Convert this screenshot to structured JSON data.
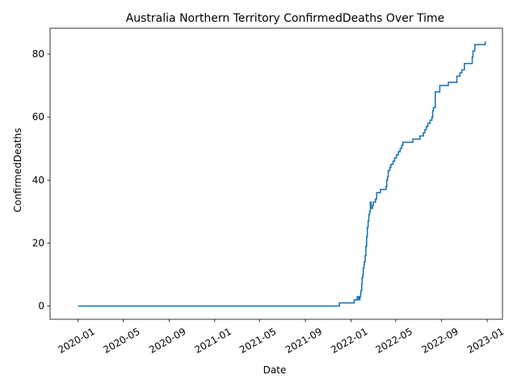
{
  "chart_data": {
    "type": "line",
    "title": "Australia Northern Territory ConfirmedDeaths Over Time",
    "xlabel": "Date",
    "ylabel": "ConfirmedDeaths",
    "x_ticks": [
      "2020-01",
      "2020-05",
      "2020-09",
      "2021-01",
      "2021-05",
      "2021-09",
      "2022-01",
      "2022-05",
      "2022-09",
      "2023-01"
    ],
    "y_ticks": [
      0,
      20,
      40,
      60,
      80
    ],
    "xlim": [
      "2019-10-18",
      "2023-02-11"
    ],
    "ylim": [
      -4.2,
      88.2
    ],
    "grid": false,
    "legend": "none",
    "color": "#1f77b4",
    "series": [
      {
        "x": [
          "2020-01-01",
          "2021-11-30",
          "2021-12-01",
          "2022-01-09",
          "2022-01-10",
          "2022-01-17",
          "2022-01-18",
          "2022-01-20",
          "2022-01-21",
          "2022-01-24",
          "2022-01-25",
          "2022-01-27",
          "2022-01-28",
          "2022-01-30",
          "2022-01-31",
          "2022-02-02",
          "2022-02-03",
          "2022-02-05",
          "2022-02-06",
          "2022-02-08",
          "2022-02-10",
          "2022-02-12",
          "2022-02-14",
          "2022-02-16",
          "2022-02-18",
          "2022-02-20",
          "2022-02-22",
          "2022-02-24",
          "2022-02-26",
          "2022-02-28",
          "2022-03-01",
          "2022-03-02",
          "2022-03-04",
          "2022-03-08",
          "2022-03-11",
          "2022-03-14",
          "2022-03-18",
          "2022-03-21",
          "2022-04-05",
          "2022-04-07",
          "2022-04-09",
          "2022-04-11",
          "2022-04-13",
          "2022-04-15",
          "2022-04-18",
          "2022-04-24",
          "2022-04-28",
          "2022-05-03",
          "2022-05-08",
          "2022-05-13",
          "2022-05-17",
          "2022-05-20",
          "2022-05-24",
          "2022-06-01",
          "2022-06-16",
          "2022-06-30",
          "2022-07-05",
          "2022-07-10",
          "2022-07-14",
          "2022-07-18",
          "2022-07-22",
          "2022-07-26",
          "2022-08-01",
          "2022-08-06",
          "2022-08-08",
          "2022-08-10",
          "2022-08-15",
          "2022-08-18",
          "2022-08-27",
          "2022-09-15",
          "2022-09-19",
          "2022-10-12",
          "2022-10-15",
          "2022-10-20",
          "2022-10-25",
          "2022-11-01",
          "2022-11-22",
          "2022-11-24",
          "2022-11-29",
          "2022-12-27"
        ],
        "values": [
          0,
          0,
          1,
          1,
          2,
          2,
          3,
          2,
          3,
          2,
          3,
          4,
          5,
          7,
          9,
          10,
          12,
          13,
          14,
          16,
          19,
          22,
          25,
          27,
          29,
          30,
          33,
          31,
          31,
          32,
          32,
          33,
          33,
          34,
          36,
          36,
          36,
          37,
          38,
          40,
          41,
          43,
          43,
          44,
          45,
          46,
          47,
          48,
          49,
          50,
          51,
          52,
          52,
          52,
          53,
          53,
          54,
          54,
          55,
          56,
          57,
          58,
          59,
          60,
          62,
          63,
          68,
          68,
          70,
          70,
          71,
          73,
          73,
          74,
          75,
          77,
          79,
          81,
          83,
          84
        ]
      }
    ]
  }
}
